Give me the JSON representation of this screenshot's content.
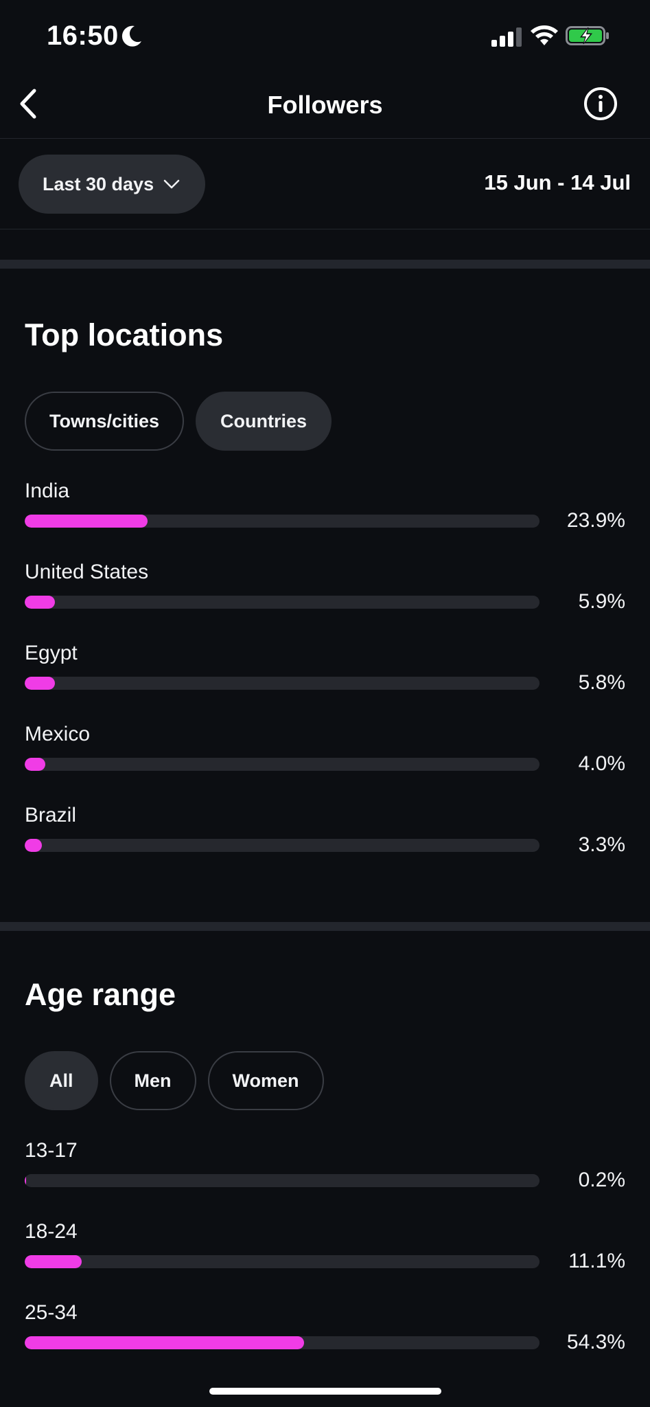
{
  "status_bar": {
    "time": "16:50",
    "icons": [
      "moon-icon",
      "signal-icon",
      "wifi-icon",
      "battery-charging-icon"
    ],
    "battery_color": "#30c94a"
  },
  "nav": {
    "title": "Followers",
    "back_icon": "chevron-left-icon",
    "info_icon": "info-icon"
  },
  "filter": {
    "range_label": "Last 30 days",
    "date_range": "15 Jun - 14 Jul"
  },
  "top_locations": {
    "title": "Top locations",
    "tabs": [
      {
        "label": "Towns/cities",
        "active": false
      },
      {
        "label": "Countries",
        "active": true
      }
    ],
    "items": [
      {
        "label": "India",
        "value": "23.9%",
        "percent": 23.9
      },
      {
        "label": "United States",
        "value": "5.9%",
        "percent": 5.9
      },
      {
        "label": "Egypt",
        "value": "5.8%",
        "percent": 5.8
      },
      {
        "label": "Mexico",
        "value": "4.0%",
        "percent": 4.0
      },
      {
        "label": "Brazil",
        "value": "3.3%",
        "percent": 3.3
      }
    ]
  },
  "age_range": {
    "title": "Age range",
    "tabs": [
      {
        "label": "All",
        "active": true
      },
      {
        "label": "Men",
        "active": false
      },
      {
        "label": "Women",
        "active": false
      }
    ],
    "items": [
      {
        "label": "13-17",
        "value": "0.2%",
        "percent": 0.2
      },
      {
        "label": "18-24",
        "value": "11.1%",
        "percent": 11.1
      },
      {
        "label": "25-34",
        "value": "54.3%",
        "percent": 54.3
      }
    ]
  },
  "colors": {
    "background": "#0c0e12",
    "accent_bar": "#f03ce6",
    "track": "#26282e",
    "pill_active": "#2a2d33"
  }
}
